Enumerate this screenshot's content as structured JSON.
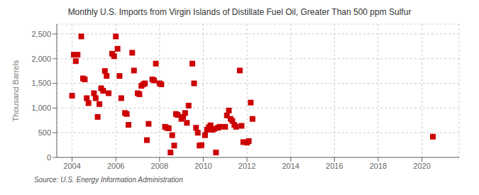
{
  "chart_data": {
    "type": "scatter",
    "title": "Monthly U.S. Imports from Virgin Islands of Distillate Fuel Oil, Greater Than 500 ppm Sulfur",
    "ylabel": "Thousand Barrels",
    "source": "Source: U.S. Energy Information Administration",
    "color": "#cc0000",
    "marker": "square",
    "grid": true,
    "xlim": [
      2003.3,
      2021.7
    ],
    "ylim": [
      0,
      2700
    ],
    "xticks": [
      2004,
      2006,
      2008,
      2010,
      2012,
      2014,
      2016,
      2018,
      2020
    ],
    "yticks": [
      0,
      500,
      {
        "value": 1000,
        "label": "1,000"
      },
      {
        "value": 1500,
        "label": "1,500"
      },
      {
        "value": 2000,
        "label": "2,000"
      },
      {
        "value": 2500,
        "label": "2,500"
      }
    ],
    "x": [
      2004.0,
      2004.08,
      2004.17,
      2004.25,
      2004.42,
      2004.5,
      2004.58,
      2004.67,
      2004.75,
      2005.0,
      2005.08,
      2005.17,
      2005.25,
      2005.33,
      2005.42,
      2005.5,
      2005.58,
      2005.67,
      2005.83,
      2005.92,
      2006.0,
      2006.08,
      2006.17,
      2006.25,
      2006.42,
      2006.5,
      2006.58,
      2006.75,
      2006.83,
      2007.0,
      2007.08,
      2007.17,
      2007.25,
      2007.33,
      2007.42,
      2007.5,
      2007.67,
      2007.75,
      2007.83,
      2008.0,
      2008.08,
      2008.25,
      2008.33,
      2008.42,
      2008.5,
      2008.58,
      2008.67,
      2008.75,
      2008.83,
      2009.0,
      2009.08,
      2009.17,
      2009.25,
      2009.33,
      2009.5,
      2009.58,
      2009.67,
      2009.75,
      2009.83,
      2009.92,
      2010.08,
      2010.17,
      2010.25,
      2010.33,
      2010.42,
      2010.5,
      2010.58,
      2010.67,
      2010.75,
      2011.0,
      2011.08,
      2011.17,
      2011.25,
      2011.33,
      2011.42,
      2011.5,
      2011.67,
      2011.75,
      2011.83,
      2012.0,
      2012.08,
      2012.17,
      2012.25,
      2020.5
    ],
    "values": [
      1250,
      2080,
      1950,
      2080,
      2450,
      1600,
      1580,
      1200,
      1100,
      1300,
      1200,
      820,
      1080,
      1400,
      1350,
      1750,
      1650,
      1300,
      2100,
      2050,
      2450,
      2200,
      1650,
      1200,
      900,
      880,
      660,
      2120,
      1760,
      1300,
      1280,
      1450,
      1480,
      1500,
      350,
      680,
      1580,
      1560,
      1900,
      1500,
      1480,
      620,
      600,
      590,
      100,
      450,
      240,
      880,
      860,
      780,
      820,
      900,
      700,
      1050,
      1900,
      1500,
      600,
      500,
      240,
      250,
      450,
      560,
      610,
      650,
      560,
      580,
      100,
      600,
      620,
      620,
      850,
      950,
      780,
      740,
      660,
      620,
      1760,
      640,
      310,
      300,
      330,
      1110,
      780,
      420
    ]
  }
}
